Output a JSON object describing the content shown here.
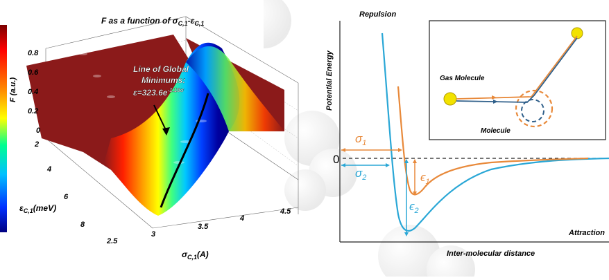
{
  "left_figure": {
    "title": "F as a function of σ",
    "title_sub1": "C,1",
    "title_mid": "-ε",
    "title_sub2": "C,1",
    "z_axis": {
      "label": "F (a.u.)",
      "ticks": [
        "0.8",
        "0.6",
        "0.4",
        "0.2",
        "0"
      ]
    },
    "y_axis": {
      "label": "ε",
      "label_sub": "C,1",
      "label_unit": "(meV)",
      "ticks": [
        "2",
        "4",
        "6",
        "8"
      ]
    },
    "x_axis": {
      "label": "σ",
      "label_sub": "C,1",
      "label_unit": "(A)",
      "ticks": [
        "2.5",
        "3",
        "3.5",
        "4",
        "4.5"
      ]
    },
    "annotation": {
      "line1": "Line of Global",
      "line2": "Minimums:",
      "eq_lhs": "ε=323.6e",
      "eq_exp": "-1.16σ"
    },
    "colorbar_colors": [
      "#8b0000",
      "#ff0000",
      "#ff8000",
      "#ffff00",
      "#00ff80",
      "#00bfff",
      "#0000ff",
      "#00008b"
    ]
  },
  "right_figure": {
    "y_axis_label": "Potential Energy",
    "x_axis_label": "Inter-molecular distance",
    "repulsion_label": "Repulsion",
    "attraction_label": "Attraction",
    "zero_label": "0",
    "sigma1": "σ",
    "sigma1_sub": "1",
    "sigma2": "σ",
    "sigma2_sub": "2",
    "epsilon1": "ϵ",
    "epsilon1_sub": "1",
    "epsilon2": "ϵ",
    "epsilon2_sub": "2",
    "inset": {
      "gas_molecule": "Gas Molecule",
      "molecule": "Molecule"
    },
    "colors": {
      "orange": "#e8893a",
      "blue": "#2aa7d6",
      "trajectory_blue": "#2f5f8a",
      "ball": "#f2e200"
    }
  }
}
